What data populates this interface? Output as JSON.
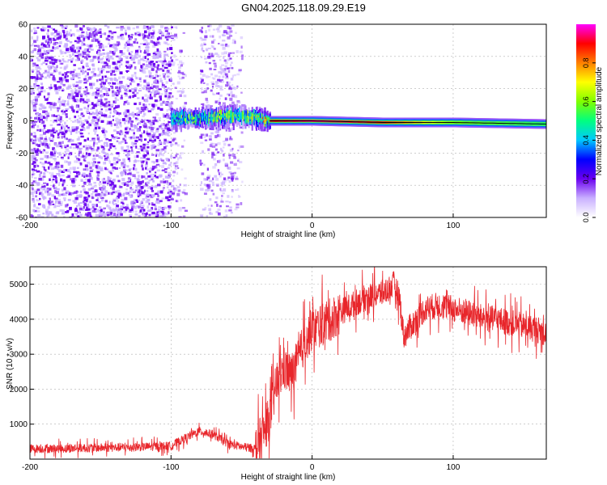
{
  "title": "GN04.2025.118.09.29.E19",
  "colors": {
    "snr_line": "#e8262b",
    "axis": "#000000",
    "grid": "#b0b0b0",
    "scatter_dark": "#6a00f0",
    "scatter_light": "#c9b0ff"
  },
  "colorbar": {
    "label": "Normalized spectral amplitude",
    "ticks": [
      "0.0",
      "0.2",
      "0.4",
      "0.6",
      "0.8"
    ],
    "tick_values": [
      0.0,
      0.2,
      0.4,
      0.6,
      0.8
    ],
    "range": [
      0,
      1
    ],
    "colormap": [
      "#ffffff",
      "#c9b0ff",
      "#6a00f0",
      "#0000ff",
      "#00c8ff",
      "#00ff80",
      "#80ff00",
      "#ffff00",
      "#ff8000",
      "#ff0000",
      "#ff00ff"
    ]
  },
  "chart_data": [
    {
      "type": "heatmap",
      "title": "",
      "xlabel": "Height of straight line (km)",
      "ylabel": "Frequency (Hz)",
      "xlim": [
        -200,
        166
      ],
      "ylim": [
        -60,
        60
      ],
      "x_ticks": [
        -200,
        -100,
        0,
        100
      ],
      "x_tick_labels": [
        "-200",
        "-100",
        "0",
        "100"
      ],
      "y_ticks": [
        -60,
        -40,
        -20,
        0,
        20,
        40,
        60
      ],
      "y_tick_labels": [
        "-60",
        "-40",
        "-20",
        "0",
        "20",
        "40",
        "60"
      ],
      "grid": true,
      "regions": [
        {
          "x_range": [
            -200,
            -100
          ],
          "freq_range": [
            -60,
            60
          ],
          "amplitude": 0.1,
          "description_level": "dense noise"
        },
        {
          "x_range": [
            -100,
            -90
          ],
          "freq_range": [
            -60,
            60
          ],
          "amplitude": 0.04
        },
        {
          "x_range": [
            -80,
            -57
          ],
          "freq_range": [
            -60,
            60
          ],
          "amplitude": 0.06
        },
        {
          "x_range": [
            -57,
            -50
          ],
          "freq_range": [
            -60,
            60
          ],
          "amplitude": 0.03
        }
      ],
      "tonal_track": [
        {
          "x": -100,
          "freq": 1,
          "amplitude": 0.35
        },
        {
          "x": -75,
          "freq": 2,
          "amplitude": 0.4
        },
        {
          "x": -55,
          "freq": 3,
          "amplitude": 0.55
        },
        {
          "x": -40,
          "freq": 2,
          "amplitude": 0.6
        },
        {
          "x": -30,
          "freq": 0,
          "amplitude": 0.9
        },
        {
          "x": 0,
          "freq": 0,
          "amplitude": 0.95
        },
        {
          "x": 50,
          "freq": -1,
          "amplitude": 0.9
        },
        {
          "x": 100,
          "freq": -1,
          "amplitude": 0.6
        },
        {
          "x": 166,
          "freq": -2,
          "amplitude": 0.5
        }
      ]
    },
    {
      "type": "line",
      "title": "",
      "xlabel": "Height of straight line (km)",
      "ylabel": "SNR (10 * v/v)",
      "xlim": [
        -200,
        166
      ],
      "ylim": [
        0,
        5500
      ],
      "x_ticks": [
        -200,
        -100,
        0,
        100
      ],
      "x_tick_labels": [
        "-200",
        "-100",
        "0",
        "100"
      ],
      "y_ticks": [
        1000,
        2000,
        3000,
        4000,
        5000
      ],
      "y_tick_labels": [
        "1000",
        "2000",
        "3000",
        "4000",
        "5000"
      ],
      "grid": true,
      "series": [
        {
          "x": [
            -200,
            -180,
            -160,
            -140,
            -120,
            -100,
            -90,
            -80,
            -70,
            -60,
            -50,
            -40,
            -35,
            -30,
            -25,
            -20,
            -15,
            -10,
            -5,
            0,
            10,
            20,
            30,
            40,
            50,
            55,
            58,
            62,
            65,
            70,
            80,
            90,
            100,
            110,
            120,
            130,
            140,
            150,
            160,
            166
          ],
          "y": [
            300,
            300,
            320,
            330,
            350,
            380,
            600,
            800,
            700,
            450,
            350,
            300,
            700,
            1200,
            2200,
            2600,
            2400,
            2800,
            3400,
            3700,
            3900,
            4200,
            4450,
            4650,
            4750,
            4900,
            5000,
            4600,
            3500,
            3800,
            4300,
            4400,
            4300,
            4200,
            4050,
            4000,
            3900,
            3800,
            3700,
            3600
          ]
        }
      ]
    }
  ]
}
